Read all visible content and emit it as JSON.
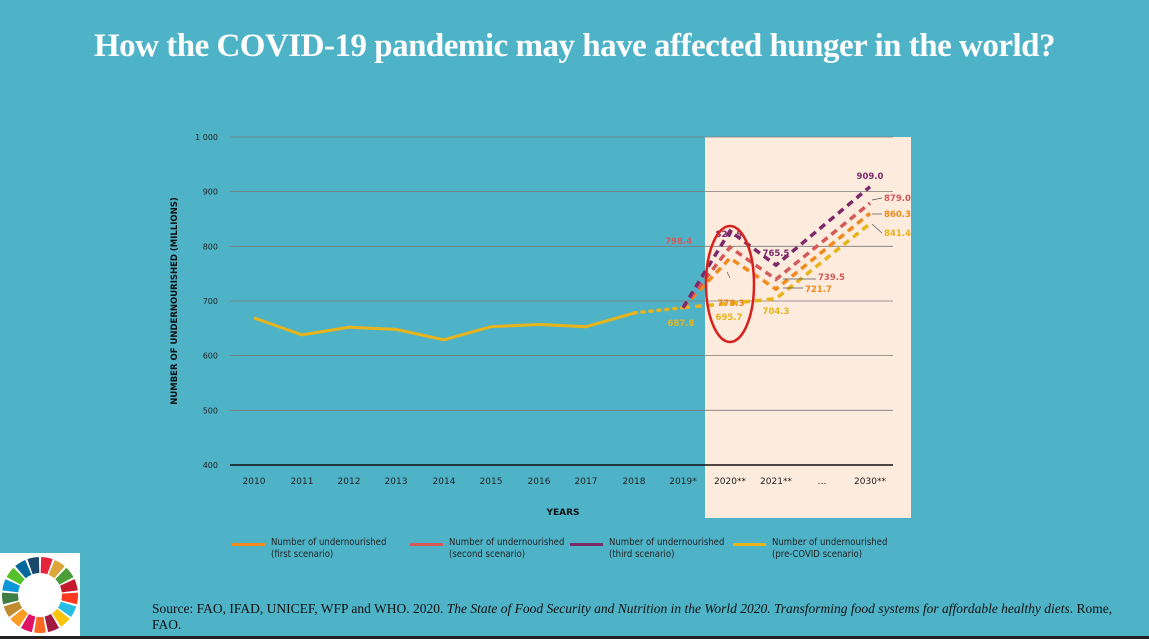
{
  "title": "How the COVID-19 pandemic may have affected hunger in the world?",
  "source": {
    "prefix": "Source: FAO, IFAD, UNICEF, WFP and WHO. 2020. ",
    "italic": "The State of Food Security and Nutrition in the World 2020. Transforming food systems for affordable healthy diets",
    "suffix": ". Rome, FAO."
  },
  "chart_data": {
    "type": "line",
    "ylabel": "NUMBER OF UNDERNOURISHED (MILLIONS)",
    "xlabel": "YEARS",
    "ylim": [
      400,
      1000
    ],
    "yticks": [
      "400",
      "500",
      "600",
      "700",
      "800",
      "900",
      "1 000"
    ],
    "categories": [
      "2010",
      "2011",
      "2012",
      "2013",
      "2014",
      "2015",
      "2016",
      "2017",
      "2018",
      "2019*",
      "2020**",
      "2021**",
      "…",
      "2030**"
    ],
    "grid": true,
    "highlight_range": [
      "2020**",
      "2030**"
    ],
    "historical": {
      "x": [
        "2010",
        "2011",
        "2012",
        "2013",
        "2014",
        "2015",
        "2016",
        "2017",
        "2018",
        "2019*"
      ],
      "values": [
        669,
        638,
        652,
        648,
        629,
        653,
        657,
        653,
        678,
        687.8
      ],
      "color": "#e8b41a"
    },
    "series": [
      {
        "name": "Number of undernourished (first scenario)",
        "color": "#f08a1c",
        "x": [
          "2019*",
          "2020**",
          "2021**",
          "2030**"
        ],
        "values": [
          687.8,
          778.3,
          721.7,
          860.3
        ]
      },
      {
        "name": "Number of undernourished (second scenario)",
        "color": "#d45a5a",
        "x": [
          "2019*",
          "2020**",
          "2021**",
          "2030**"
        ],
        "values": [
          687.8,
          798.4,
          739.5,
          879.0
        ]
      },
      {
        "name": "Number of undernourished (third scenario)",
        "color": "#7d2a6a",
        "x": [
          "2019*",
          "2020**",
          "2021**",
          "2030**"
        ],
        "values": [
          687.8,
          827.9,
          765.5,
          909.0
        ]
      },
      {
        "name": "Number of undernourished (pre-COVID scenario)",
        "color": "#e8b41a",
        "x": [
          "2019*",
          "2020**",
          "2021**",
          "2030**"
        ],
        "values": [
          687.8,
          695.7,
          704.3,
          841.4
        ]
      }
    ],
    "data_labels": [
      "687.8",
      "778.3",
      "798.4",
      "827.9",
      "695.7",
      "721.7",
      "739.5",
      "765.5",
      "704.3",
      "860.3",
      "879.0",
      "909.0",
      "841.4"
    ],
    "legend": [
      {
        "line1": "Number of undernourished",
        "line2": "(first scenario)",
        "color": "#f08a1c"
      },
      {
        "line1": "Number of undernourished",
        "line2": "(second scenario)",
        "color": "#d45a5a"
      },
      {
        "line1": "Number of undernourished",
        "line2": "(third scenario)",
        "color": "#7d2a6a"
      },
      {
        "line1": "Number of undernourished",
        "line2": "(pre-COVID scenario)",
        "color": "#e8b41a"
      }
    ]
  }
}
